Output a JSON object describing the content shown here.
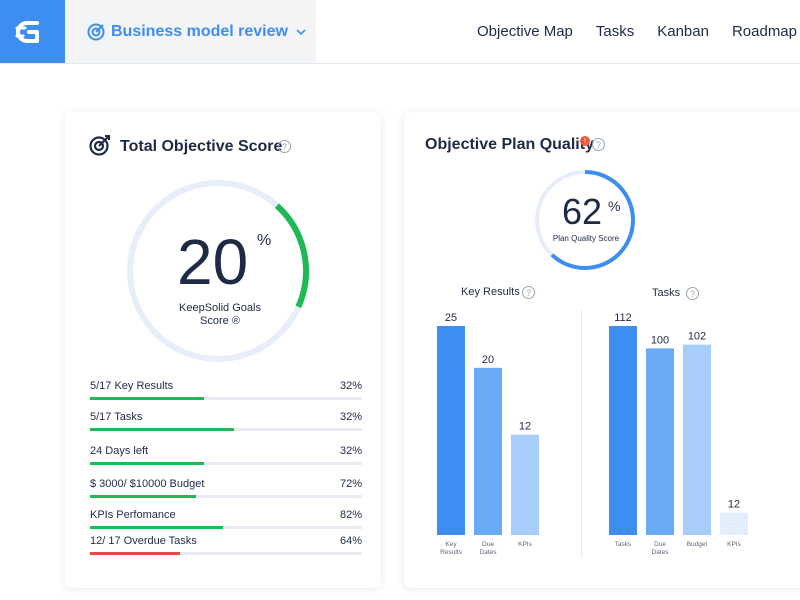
{
  "header": {
    "project_name": "Business model review",
    "nav": [
      "Objective Map",
      "Tasks",
      "Kanban",
      "Roadmap"
    ]
  },
  "score_card": {
    "title": "Total Objective Score",
    "score": "20",
    "percent_sign": "%",
    "caption": "KeepSolid Goals Score ®",
    "score_value": 20,
    "metrics": [
      {
        "label": "5/17 Key Results",
        "value": "32%",
        "fill": 0.42,
        "color": "#1db954"
      },
      {
        "label": "5/17 Tasks",
        "value": "32%",
        "fill": 0.53,
        "color": "#1db954"
      },
      {
        "label": "24 Days left",
        "value": "32%",
        "fill": 0.42,
        "color": "#1db954"
      },
      {
        "label": "$ 3000/ $10000 Budget",
        "value": "72%",
        "fill": 0.39,
        "color": "#1db954"
      },
      {
        "label": "KPIs Perfomance",
        "value": "82%",
        "fill": 0.49,
        "color": "#1db954"
      },
      {
        "label": "12/ 17 Overdue Tasks",
        "value": "64%",
        "fill": 0.33,
        "color": "#e84848"
      }
    ]
  },
  "quality_card": {
    "title": "Objective Plan Quality",
    "badge": "!",
    "score": "62",
    "percent_sign": "%",
    "caption": "Plan Quality Score",
    "score_value": 62,
    "key_results_label": "Key Results",
    "tasks_label": "Tasks"
  },
  "chart_data": [
    {
      "type": "bar",
      "title": "Key Results",
      "categories": [
        "Key Results",
        "Due Dates",
        "KPIs"
      ],
      "values": [
        25,
        20,
        12
      ],
      "colors": [
        "#3d8ef0",
        "#6aa9f5",
        "#a8cdfa"
      ]
    },
    {
      "type": "bar",
      "title": "Tasks",
      "categories": [
        "Tasks",
        "Due Dates",
        "Budget",
        "KPIs"
      ],
      "values": [
        112,
        100,
        102,
        12
      ],
      "colors": [
        "#3d8ef0",
        "#6aa9f5",
        "#a8cdfa",
        "#dfeafb"
      ]
    }
  ],
  "colors": {
    "accent": "#3d8ef0",
    "success": "#1db954",
    "danger": "#e84848",
    "ring_track": "#e8eef9"
  }
}
